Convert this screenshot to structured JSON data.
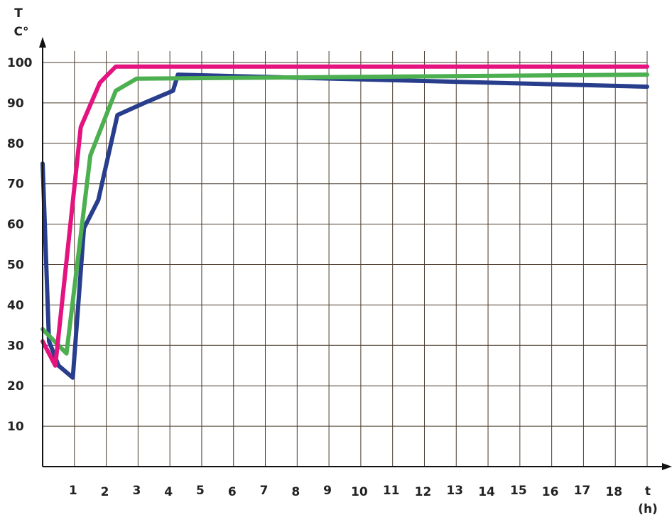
{
  "chart_data": {
    "type": "line",
    "ylabel_top": "T",
    "ylabel_unit": "C°",
    "xlabel": "t",
    "xlabel_unit": "(h)",
    "xlim": [
      0,
      19
    ],
    "ylim": [
      0,
      110
    ],
    "grid": true,
    "x_ticks": [
      "1",
      "2",
      "3",
      "4",
      "5",
      "6",
      "7",
      "8",
      "9",
      "10",
      "11",
      "12",
      "13",
      "14",
      "15",
      "16",
      "17",
      "18"
    ],
    "y_ticks": [
      "10",
      "20",
      "30",
      "40",
      "50",
      "60",
      "70",
      "80",
      "90",
      "100"
    ],
    "colors": {
      "navy": "#283e8c",
      "magenta": "#e4137f",
      "green": "#4caf50"
    },
    "series": [
      {
        "color": "#283e8c",
        "points": [
          [
            0,
            75
          ],
          [
            0.2,
            31
          ],
          [
            0.5,
            25
          ],
          [
            0.95,
            22
          ],
          [
            1.3,
            59
          ],
          [
            1.75,
            66
          ],
          [
            2.35,
            87
          ],
          [
            3.2,
            90
          ],
          [
            4.1,
            93
          ],
          [
            4.25,
            97
          ],
          [
            19,
            94
          ]
        ]
      },
      {
        "color": "#4caf50",
        "points": [
          [
            0,
            34
          ],
          [
            0.75,
            28
          ],
          [
            1.5,
            77
          ],
          [
            2.3,
            93
          ],
          [
            2.95,
            96
          ],
          [
            19,
            97
          ]
        ]
      },
      {
        "color": "#e4137f",
        "points": [
          [
            0,
            31
          ],
          [
            0.4,
            25
          ],
          [
            1.2,
            84
          ],
          [
            1.8,
            95
          ],
          [
            2.3,
            99
          ],
          [
            19,
            99
          ]
        ]
      }
    ]
  }
}
